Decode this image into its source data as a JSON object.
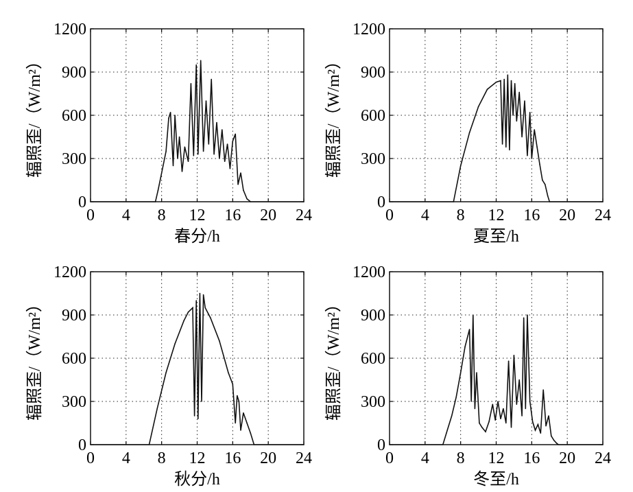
{
  "chart_data": [
    {
      "type": "line",
      "xlabel": "春分/h",
      "ylabel": "辐照歪/（W/m²）",
      "xlim": [
        0,
        24
      ],
      "ylim": [
        0,
        1200
      ],
      "xticks": [
        "0",
        "4",
        "8",
        "12",
        "16",
        "20",
        "24"
      ],
      "yticks": [
        "0",
        "300",
        "600",
        "900",
        "1200"
      ],
      "grid": true,
      "grid_style": "dotted",
      "color": "#111111",
      "series": [
        {
          "x": [
            0,
            7.3,
            7.6,
            8.0,
            8.5,
            8.8,
            9.0,
            9.3,
            9.5,
            9.8,
            10.0,
            10.3,
            10.6,
            11.0,
            11.3,
            11.6,
            11.9,
            12.1,
            12.4,
            12.7,
            13.0,
            13.3,
            13.6,
            13.9,
            14.2,
            14.5,
            14.8,
            15.1,
            15.4,
            15.7,
            16.0,
            16.3,
            16.6,
            16.9,
            17.2,
            17.6,
            18.0,
            24
          ],
          "y": [
            0,
            0,
            80,
            200,
            350,
            580,
            620,
            250,
            600,
            300,
            450,
            210,
            380,
            280,
            820,
            320,
            950,
            330,
            980,
            350,
            700,
            400,
            850,
            330,
            550,
            300,
            500,
            280,
            400,
            230,
            420,
            470,
            120,
            200,
            80,
            20,
            0,
            0
          ]
        }
      ]
    },
    {
      "type": "line",
      "xlabel": "夏至/h",
      "ylabel": "辐照歪/（W/m²）",
      "xlim": [
        0,
        24
      ],
      "ylim": [
        0,
        1200
      ],
      "xticks": [
        "0",
        "4",
        "8",
        "12",
        "16",
        "20",
        "24"
      ],
      "yticks": [
        "0",
        "300",
        "600",
        "900",
        "1200"
      ],
      "grid": true,
      "grid_style": "dotted",
      "color": "#111111",
      "series": [
        {
          "x": [
            0,
            7.2,
            8.0,
            9.0,
            10.0,
            11.0,
            12.0,
            12.5,
            12.7,
            12.9,
            13.1,
            13.3,
            13.5,
            13.7,
            13.9,
            14.1,
            14.3,
            14.6,
            14.9,
            15.2,
            15.5,
            15.8,
            16.0,
            16.3,
            16.6,
            16.9,
            17.2,
            17.5,
            17.8,
            18.0,
            24
          ],
          "y": [
            0,
            0,
            250,
            480,
            660,
            780,
            830,
            840,
            400,
            850,
            380,
            880,
            360,
            840,
            600,
            820,
            560,
            760,
            450,
            700,
            320,
            620,
            300,
            500,
            380,
            260,
            150,
            120,
            40,
            0,
            0
          ]
        }
      ]
    },
    {
      "type": "line",
      "xlabel": "秋分/h",
      "ylabel": "辐照歪/（W/m²）",
      "xlim": [
        0,
        24
      ],
      "ylim": [
        0,
        1200
      ],
      "xticks": [
        "0",
        "4",
        "8",
        "12",
        "16",
        "20",
        "24"
      ],
      "yticks": [
        "0",
        "300",
        "600",
        "900",
        "1200"
      ],
      "grid": true,
      "grid_style": "dotted",
      "color": "#111111",
      "series": [
        {
          "x": [
            0,
            6.6,
            7.5,
            8.5,
            9.5,
            10.5,
            11.0,
            11.5,
            11.7,
            11.9,
            12.1,
            12.3,
            12.5,
            12.7,
            12.9,
            13.5,
            14.5,
            15.5,
            16.0,
            16.3,
            16.5,
            16.7,
            16.9,
            17.2,
            17.6,
            18.0,
            18.4,
            24
          ],
          "y": [
            0,
            0,
            250,
            500,
            700,
            860,
            920,
            950,
            200,
            1000,
            180,
            1050,
            300,
            1040,
            950,
            880,
            720,
            500,
            420,
            150,
            340,
            300,
            100,
            220,
            150,
            80,
            0,
            0
          ]
        }
      ]
    },
    {
      "type": "line",
      "xlabel": "冬至/h",
      "ylabel": "辐照歪/（W/m²）",
      "xlim": [
        0,
        24
      ],
      "ylim": [
        0,
        1200
      ],
      "xticks": [
        "0",
        "4",
        "8",
        "12",
        "16",
        "20",
        "24"
      ],
      "yticks": [
        "0",
        "300",
        "600",
        "900",
        "1200"
      ],
      "grid": true,
      "grid_style": "dotted",
      "color": "#111111",
      "series": [
        {
          "x": [
            0,
            6.0,
            6.5,
            7.0,
            7.5,
            8.0,
            8.5,
            9.0,
            9.2,
            9.4,
            9.6,
            9.8,
            10.1,
            10.4,
            10.8,
            11.2,
            11.6,
            11.9,
            12.2,
            12.5,
            12.8,
            13.1,
            13.4,
            13.7,
            14.0,
            14.3,
            14.6,
            14.9,
            15.1,
            15.3,
            15.5,
            15.8,
            16.1,
            16.4,
            16.7,
            17.0,
            17.3,
            17.6,
            17.9,
            18.2,
            18.5,
            18.8,
            19.0,
            24
          ],
          "y": [
            0,
            0,
            100,
            200,
            330,
            500,
            680,
            800,
            300,
            900,
            250,
            500,
            150,
            120,
            90,
            160,
            280,
            170,
            300,
            180,
            250,
            150,
            580,
            120,
            620,
            280,
            450,
            200,
            880,
            250,
            900,
            300,
            160,
            100,
            140,
            80,
            380,
            130,
            200,
            60,
            30,
            10,
            0,
            0
          ]
        }
      ]
    }
  ]
}
